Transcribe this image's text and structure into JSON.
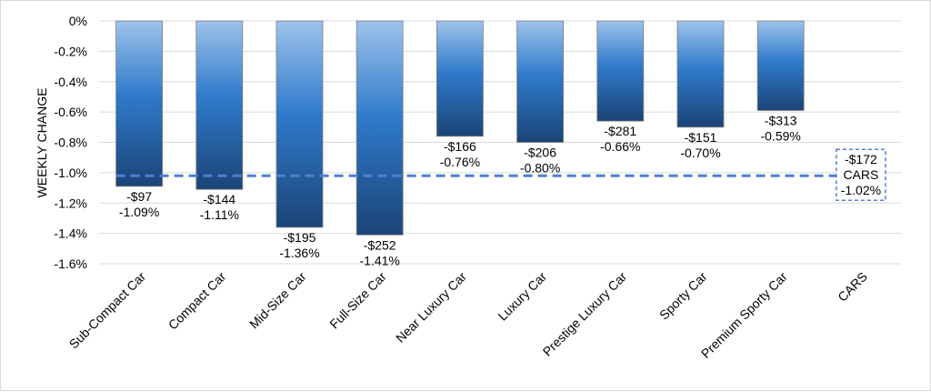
{
  "chart_data": {
    "type": "bar",
    "ylabel": "WEEKLY CHANGE",
    "ylim": [
      -1.6,
      0
    ],
    "yticks": [
      "0%",
      "-0.2%",
      "-0.4%",
      "-0.6%",
      "-0.8%",
      "-1.0%",
      "-1.2%",
      "-1.4%",
      "-1.6%"
    ],
    "ytick_values": [
      0,
      -0.2,
      -0.4,
      -0.6,
      -0.8,
      -1.0,
      -1.2,
      -1.4,
      -1.6
    ],
    "categories": [
      "Sub-Compact Car",
      "Compact Car",
      "Mid-Size Car",
      "Full-Size Car",
      "Near Luxury Car",
      "Luxury Car",
      "Prestige Luxury Car",
      "Sporty Car",
      "Premium Sporty Car",
      "CARS"
    ],
    "values": [
      -1.09,
      -1.11,
      -1.36,
      -1.41,
      -0.76,
      -0.8,
      -0.66,
      -0.7,
      -0.59,
      null
    ],
    "dollar_labels": [
      "-$97",
      "-$144",
      "-$195",
      "-$252",
      "-$166",
      "-$206",
      "-$281",
      "-$151",
      "-$313"
    ],
    "pct_labels": [
      "-1.09%",
      "-1.11%",
      "-1.36%",
      "-1.41%",
      "-0.76%",
      "-0.80%",
      "-0.66%",
      "-0.70%",
      "-0.59%"
    ],
    "reference_line": {
      "value": -1.02,
      "category": "CARS",
      "labels": [
        "-$172",
        "CARS",
        "-1.02%"
      ]
    },
    "grid": true,
    "colors": {
      "bar_top": "#9ec3ea",
      "bar_mid": "#2f7acb",
      "bar_bottom": "#1b4476",
      "ref_line": "#4f7fd1",
      "grid": "#d9d9d9"
    }
  }
}
